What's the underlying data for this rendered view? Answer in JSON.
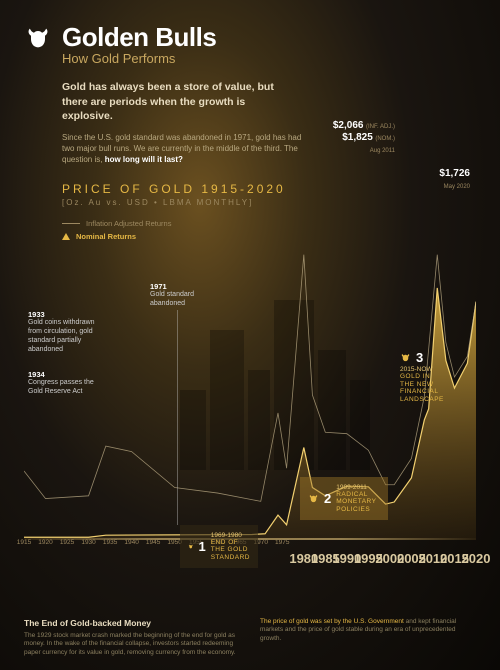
{
  "colors": {
    "gold": "#e6b845",
    "gold_light": "#f2d070",
    "gold_area_top": "rgba(230,184,69,0.85)",
    "gold_area_bot": "rgba(140,100,30,0.15)",
    "line_inflation": "#c9b890",
    "text_light": "#e8dcc0",
    "text_dim": "#9c8860"
  },
  "header": {
    "title": "Golden Bulls",
    "subtitle": "How Gold Performs",
    "intro": "Gold has always been a store of value, but there are periods when the growth is explosive.",
    "desc_pre": "Since the U.S. gold standard was abandoned in 1971, gold has had two major bull runs. We are currently in the middle of the third. The question is, ",
    "desc_bold": "how long will it last?",
    "chart_title": "PRICE OF GOLD 1915-2020",
    "chart_sub": "[Oz. Au vs. USD • LBMA MONTHLY]"
  },
  "legend": {
    "inflation": "Inflation Adjusted Returns",
    "nominal": "Nominal Returns"
  },
  "peaks": {
    "p2011": {
      "price_inf": "$2,066",
      "inf_note": "(INF. ADJ.)",
      "price_nom": "$1,825",
      "nom_note": "(NOM.)",
      "date": "Aug 2011"
    },
    "p2020": {
      "price": "$1,726",
      "date": "May 2020"
    }
  },
  "annotations": {
    "a1933": {
      "year": "1933",
      "text": "Gold coins withdrawn from circulation, gold standard partially abandoned"
    },
    "a1934": {
      "year": "1934",
      "text": "Congress passes the Gold Reserve Act"
    },
    "a1971": {
      "year": "1971",
      "text": "Gold standard abandoned"
    }
  },
  "eras": {
    "e1": {
      "num": "1",
      "years": "1969-1980",
      "label": "END OF\nTHE GOLD\nSTANDARD"
    },
    "e2": {
      "num": "2",
      "years": "1999-2011",
      "label": "RADICAL\nMONETARY\nPOLICIES"
    },
    "e3": {
      "num": "3",
      "years": "2015-NOW",
      "label": "GOLD IN\nTHE NEW\nFINANCIAL\nLANDSCAPE"
    }
  },
  "x_axis": {
    "small": [
      "1915",
      "1920",
      "1925",
      "1930",
      "1935",
      "1940",
      "1945",
      "1950",
      "1955",
      "1960",
      "1965",
      "1970",
      "1975"
    ],
    "big": [
      "1980",
      "1985",
      "1990",
      "1995",
      "2000",
      "2005",
      "2010",
      "2015",
      "2020"
    ]
  },
  "chart": {
    "type": "area",
    "x_range": [
      1915,
      2020
    ],
    "y_range_nominal": [
      0,
      2100
    ],
    "nominal": [
      [
        1915,
        20
      ],
      [
        1930,
        20
      ],
      [
        1934,
        35
      ],
      [
        1968,
        40
      ],
      [
        1971,
        45
      ],
      [
        1974,
        180
      ],
      [
        1976,
        110
      ],
      [
        1980,
        670
      ],
      [
        1982,
        380
      ],
      [
        1985,
        320
      ],
      [
        1990,
        390
      ],
      [
        1995,
        385
      ],
      [
        1999,
        260
      ],
      [
        2001,
        275
      ],
      [
        2005,
        450
      ],
      [
        2008,
        870
      ],
      [
        2009,
        950
      ],
      [
        2011,
        1825
      ],
      [
        2013,
        1300
      ],
      [
        2015,
        1100
      ],
      [
        2018,
        1280
      ],
      [
        2020,
        1726
      ]
    ],
    "inflation": [
      [
        1915,
        500
      ],
      [
        1920,
        300
      ],
      [
        1930,
        320
      ],
      [
        1934,
        680
      ],
      [
        1940,
        640
      ],
      [
        1950,
        380
      ],
      [
        1960,
        340
      ],
      [
        1970,
        280
      ],
      [
        1974,
        920
      ],
      [
        1976,
        520
      ],
      [
        1980,
        2066
      ],
      [
        1982,
        1050
      ],
      [
        1985,
        780
      ],
      [
        1990,
        770
      ],
      [
        1995,
        650
      ],
      [
        1999,
        400
      ],
      [
        2001,
        400
      ],
      [
        2005,
        590
      ],
      [
        2008,
        1040
      ],
      [
        2011,
        2066
      ],
      [
        2013,
        1430
      ],
      [
        2015,
        1180
      ],
      [
        2018,
        1330
      ],
      [
        2020,
        1726
      ]
    ]
  },
  "footer": {
    "left": {
      "title": "The End of Gold-backed Money",
      "text": "The 1929 stock market crash marked the beginning of the end for gold as money. In the wake of the financial collapse, investors started redeeming paper currency for its value in gold, removing currency from the economy."
    },
    "right": {
      "hl": "The price of gold was set by the U.S. Government",
      "text": " and kept financial markets and the price of gold stable during an era of unprecedented growth."
    }
  }
}
